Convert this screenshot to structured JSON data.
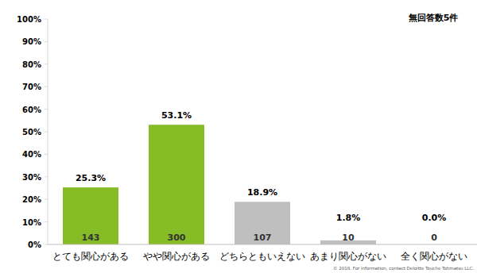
{
  "chart_data": {
    "type": "bar",
    "categories": [
      "とても関心がある",
      "やや関心がある",
      "どちらともいえない",
      "あまり関心がない",
      "全く関心がない"
    ],
    "values": [
      25.3,
      53.1,
      18.9,
      1.8,
      0.0
    ],
    "value_labels": [
      "25.3%",
      "53.1%",
      "18.9%",
      "1.8%",
      "0.0%"
    ],
    "counts": [
      143,
      300,
      107,
      10,
      0
    ],
    "colors": [
      "#86bc25",
      "#86bc25",
      "#bfbfbf",
      "#bfbfbf",
      "#bfbfbf"
    ],
    "ylim": [
      0,
      100
    ],
    "yticks": [
      {
        "value": 0,
        "label": "0%"
      },
      {
        "value": 10,
        "label": "10%"
      },
      {
        "value": 20,
        "label": "20%"
      },
      {
        "value": 30,
        "label": "30%"
      },
      {
        "value": 40,
        "label": "40%"
      },
      {
        "value": 50,
        "label": "50%"
      },
      {
        "value": 60,
        "label": "60%"
      },
      {
        "value": 70,
        "label": "70%"
      },
      {
        "value": 80,
        "label": "80%"
      },
      {
        "value": 90,
        "label": "90%"
      },
      {
        "value": 100,
        "label": "100%"
      }
    ],
    "grid": false,
    "data_labels": true,
    "annotations": [
      "無回答数5件",
      "© 2018. For information, contact Deloitte Touche Tohmatsu LLC."
    ]
  }
}
